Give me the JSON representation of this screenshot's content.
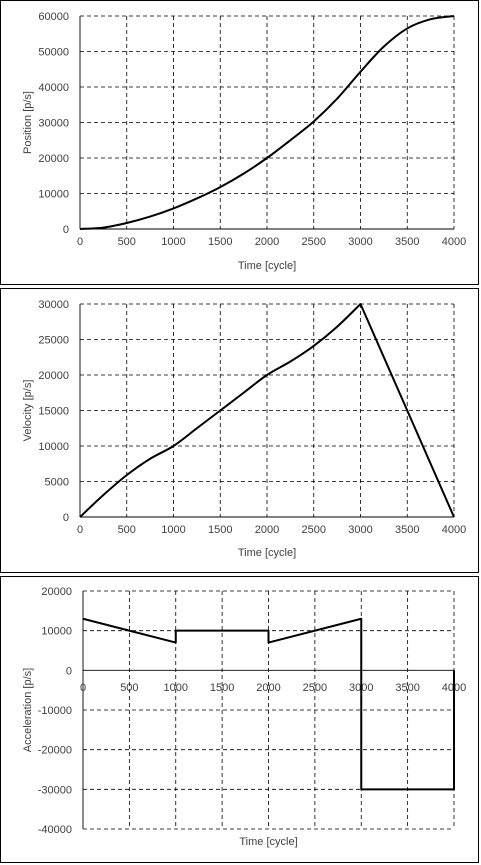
{
  "chart_data": [
    {
      "type": "line",
      "xlabel": "Time [cycle]",
      "ylabel": "Position [p/s]",
      "xlim": [
        0,
        4000
      ],
      "ylim": [
        0,
        60000
      ],
      "xticks": [
        0,
        500,
        1000,
        1500,
        2000,
        2500,
        3000,
        3500,
        4000
      ],
      "yticks": [
        0,
        10000,
        20000,
        30000,
        40000,
        50000,
        60000
      ],
      "grid": true,
      "series": [
        {
          "x": [
            0,
            250,
            500,
            750,
            1000,
            1250,
            1500,
            1750,
            2000,
            2250,
            2500,
            2750,
            3000,
            3250,
            3500,
            3750,
            4000
          ],
          "values": [
            0,
            400,
            1700,
            3500,
            5800,
            8600,
            11800,
            15600,
            20000,
            25000,
            30300,
            36700,
            44300,
            51400,
            56500,
            59100,
            60000
          ]
        }
      ]
    },
    {
      "type": "line",
      "xlabel": "Time [cycle]",
      "ylabel": "Velocity [p/s]",
      "xlim": [
        0,
        4000
      ],
      "ylim": [
        0,
        30000
      ],
      "xticks": [
        0,
        500,
        1000,
        1500,
        2000,
        2500,
        3000,
        3500,
        4000
      ],
      "yticks": [
        0,
        5000,
        10000,
        15000,
        20000,
        25000,
        30000
      ],
      "grid": true,
      "series": [
        {
          "x": [
            0,
            250,
            500,
            750,
            1000,
            1250,
            1500,
            1750,
            2000,
            2250,
            2500,
            2750,
            3000,
            3500,
            4000
          ],
          "values": [
            0,
            3100,
            5900,
            8200,
            10000,
            12500,
            15000,
            17500,
            20000,
            21900,
            24100,
            26800,
            30000,
            15000,
            0
          ]
        }
      ]
    },
    {
      "type": "line",
      "xlabel": "Time [cycle]",
      "ylabel": "Acceleration [p/s]",
      "xlim": [
        0,
        4000
      ],
      "ylim": [
        -40000,
        20000
      ],
      "xticks": [
        0,
        500,
        1000,
        1500,
        2000,
        2500,
        3000,
        3500,
        4000
      ],
      "yticks": [
        -40000,
        -30000,
        -20000,
        -10000,
        0,
        10000,
        20000
      ],
      "grid": true,
      "series": [
        {
          "x": [
            0,
            1000,
            1000,
            2000,
            2000,
            3000,
            3000,
            4000,
            4000
          ],
          "values": [
            13000,
            7000,
            10000,
            10000,
            7000,
            13000,
            -30000,
            -30000,
            0
          ]
        }
      ]
    }
  ]
}
